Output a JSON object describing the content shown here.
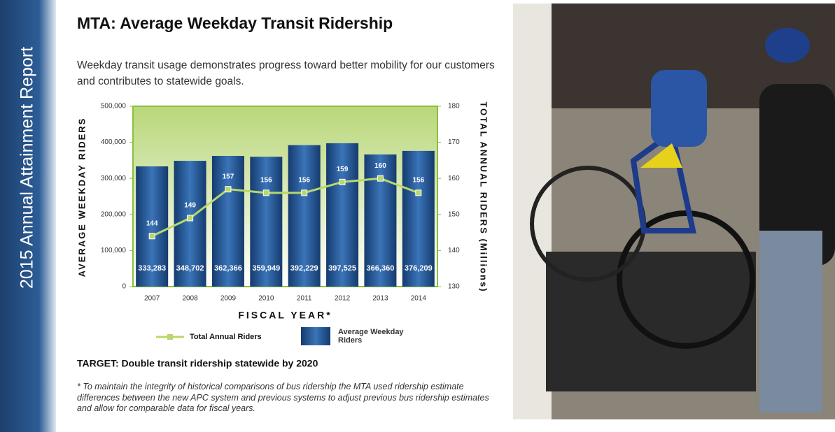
{
  "sidebar": "2015 Annual Attainment Report",
  "title": "MTA: Average Weekday Transit Ridership",
  "subtitle": "Weekday transit usage demonstrates progress toward better mobility for our customers and contributes to statewide goals.",
  "chart_data": {
    "type": "bar",
    "categories": [
      "2007",
      "2008",
      "2009",
      "2010",
      "2011",
      "2012",
      "2013",
      "2014"
    ],
    "x_label": "FISCAL YEAR*",
    "y_label": "AVERAGE WEEKDAY RIDERS",
    "y2_label": "TOTAL ANNUAL RIDERS (Millions)",
    "ylim": [
      0,
      500000
    ],
    "yticks": [
      0,
      {
        "value": 100000,
        "label": "100,000"
      },
      {
        "value": 200000,
        "label": "200,000"
      },
      {
        "value": 300000,
        "label": "300,000"
      },
      {
        "value": 400000,
        "label": "400,000"
      },
      {
        "value": 500000,
        "label": "500,000"
      }
    ],
    "y2lim": [
      130,
      180
    ],
    "y2ticks": [
      130,
      140,
      150,
      160,
      170,
      180
    ],
    "series": [
      {
        "name": "Average Weekday Riders",
        "type": "bar",
        "color": "#1f4f8f",
        "values": [
          333283,
          348702,
          362366,
          359949,
          392229,
          397525,
          366360,
          376209
        ],
        "value_labels": [
          "333,283",
          "348,702",
          "362,366",
          "359,949",
          "392,229",
          "397,525",
          "366,360",
          "376,209"
        ]
      },
      {
        "name": "Total Annual Riders",
        "type": "line",
        "axis": "y2",
        "color": "#b8d86b",
        "values": [
          144,
          149,
          157,
          156,
          156,
          159,
          160,
          156
        ]
      }
    ]
  },
  "target": "TARGET: Double transit ridership statewide by 2020",
  "footnote": "* To maintain the integrity of historical comparisons of bus ridership the MTA used ridership estimate differences between the new APC system and previous systems to adjust previous bus ridership estimates and allow for comparable data for fiscal years."
}
